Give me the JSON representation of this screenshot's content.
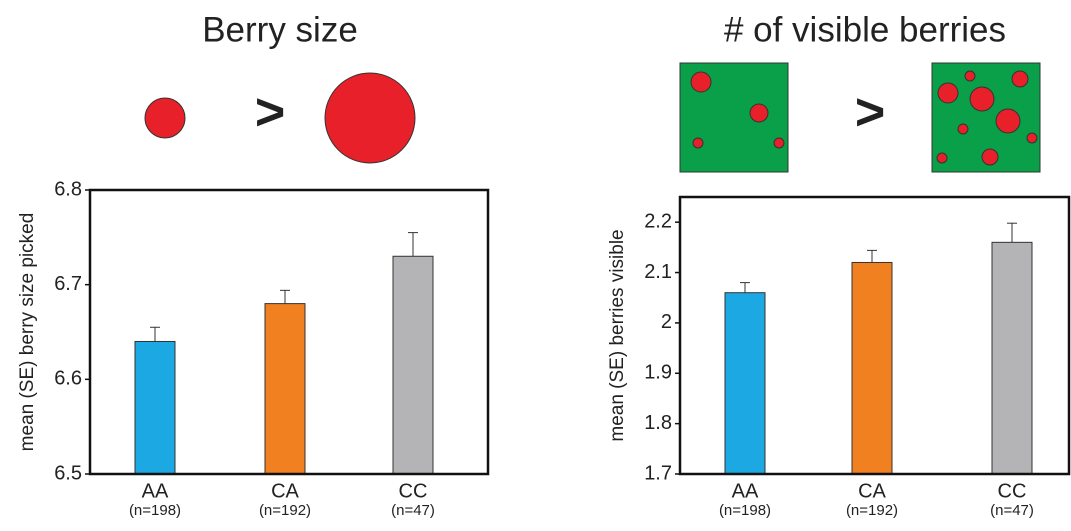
{
  "chart_data": [
    {
      "type": "bar",
      "title": "Berry size",
      "comparison_symbol": ">",
      "y_label": "mean (SE) berry size picked",
      "categories": [
        "AA",
        "CA",
        "CC"
      ],
      "sample_sizes": [
        "(n=198)",
        "(n=192)",
        "(n=47)"
      ],
      "values": [
        6.64,
        6.68,
        6.73
      ],
      "errors": [
        0.015,
        0.014,
        0.025
      ],
      "colors": [
        "#1ca8e3",
        "#f08020",
        "#b4b4b6"
      ],
      "ylim": [
        6.5,
        6.8
      ],
      "yticks": [
        6.5,
        6.6,
        6.7,
        6.8
      ]
    },
    {
      "type": "bar",
      "title": "# of visible berries",
      "comparison_symbol": ">",
      "y_label": "mean (SE) berries visible",
      "categories": [
        "AA",
        "CA",
        "CC"
      ],
      "sample_sizes": [
        "(n=198)",
        "(n=192)",
        "(n=47)"
      ],
      "values": [
        2.06,
        2.12,
        2.16
      ],
      "errors": [
        0.02,
        0.024,
        0.038
      ],
      "colors": [
        "#1ca8e3",
        "#f08020",
        "#b4b4b6"
      ],
      "ylim": [
        1.7,
        2.25
      ],
      "yticks": [
        1.7,
        1.8,
        1.9,
        2,
        2.1,
        2.2
      ]
    }
  ]
}
